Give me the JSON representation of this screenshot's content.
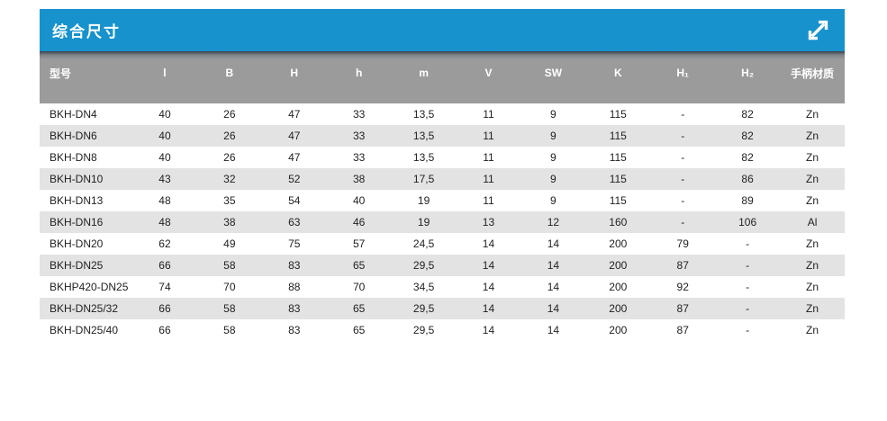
{
  "panel": {
    "title": "综合尺寸",
    "title_bar_color": "#1792cd",
    "expand_icon": "diagonal-resize-arrow",
    "icon_color": "#ffffff"
  },
  "table": {
    "header_bg": "#9b9b9b",
    "header_text_color": "#ffffff",
    "zebra_row_bg": "#e3e3e3",
    "body_text_color": "#1f1f1f",
    "columns": [
      "型号",
      "l",
      "B",
      "H",
      "h",
      "m",
      "V",
      "SW",
      "K",
      "H₁",
      "H₂",
      "手柄材质"
    ],
    "rows": [
      [
        "BKH-DN4",
        "40",
        "26",
        "47",
        "33",
        "13,5",
        "11",
        "9",
        "115",
        "-",
        "82",
        "Zn"
      ],
      [
        "BKH-DN6",
        "40",
        "26",
        "47",
        "33",
        "13,5",
        "11",
        "9",
        "115",
        "-",
        "82",
        "Zn"
      ],
      [
        "BKH-DN8",
        "40",
        "26",
        "47",
        "33",
        "13,5",
        "11",
        "9",
        "115",
        "-",
        "82",
        "Zn"
      ],
      [
        "BKH-DN10",
        "43",
        "32",
        "52",
        "38",
        "17,5",
        "11",
        "9",
        "115",
        "-",
        "86",
        "Zn"
      ],
      [
        "BKH-DN13",
        "48",
        "35",
        "54",
        "40",
        "19",
        "11",
        "9",
        "115",
        "-",
        "89",
        "Zn"
      ],
      [
        "BKH-DN16",
        "48",
        "38",
        "63",
        "46",
        "19",
        "13",
        "12",
        "160",
        "-",
        "106",
        "Al"
      ],
      [
        "BKH-DN20",
        "62",
        "49",
        "75",
        "57",
        "24,5",
        "14",
        "14",
        "200",
        "79",
        "-",
        "Zn"
      ],
      [
        "BKH-DN25",
        "66",
        "58",
        "83",
        "65",
        "29,5",
        "14",
        "14",
        "200",
        "87",
        "-",
        "Zn"
      ],
      [
        "BKHP420-DN25",
        "74",
        "70",
        "88",
        "70",
        "34,5",
        "14",
        "14",
        "200",
        "92",
        "-",
        "Zn"
      ],
      [
        "BKH-DN25/32",
        "66",
        "58",
        "83",
        "65",
        "29,5",
        "14",
        "14",
        "200",
        "87",
        "-",
        "Zn"
      ],
      [
        "BKH-DN25/40",
        "66",
        "58",
        "83",
        "65",
        "29,5",
        "14",
        "14",
        "200",
        "87",
        "-",
        "Zn"
      ]
    ]
  }
}
